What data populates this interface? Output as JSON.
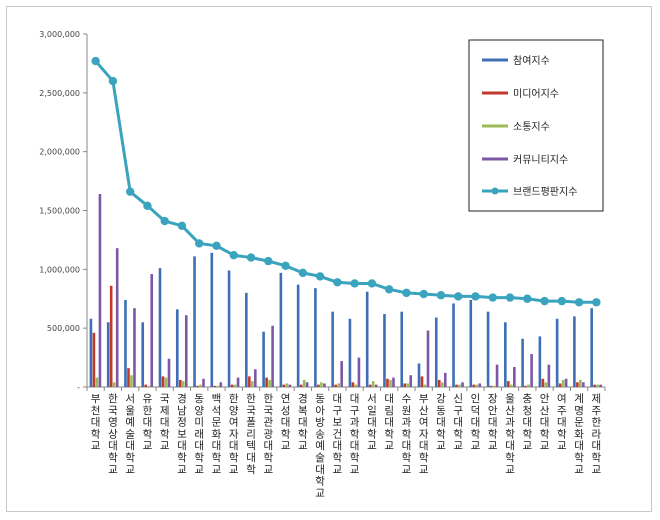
{
  "chart_data": {
    "type": "bar",
    "ylim": [
      0,
      3000000
    ],
    "yticks": [
      0,
      500000,
      1000000,
      1500000,
      2000000,
      2500000,
      3000000
    ],
    "ytick_labels": [
      "-",
      "500,000",
      "1,000,000",
      "1,500,000",
      "2,000,000",
      "2,500,000",
      "3,000,000"
    ],
    "grid": false,
    "legend_position": "top-right",
    "categories": [
      "부천대학교",
      "한국영상대학교",
      "서울예술대학교",
      "유한대학교",
      "국제대학교",
      "경남정보대학교",
      "동양미래대학교",
      "백석문화대학교",
      "한양여자대학교",
      "한국폴리텍대학",
      "한국관광대학교",
      "연성대학교",
      "경복대학교",
      "동아방송예술대학교",
      "대구보건대학교",
      "대구과학대학교",
      "서일대학교",
      "대림대학교",
      "수원과학대학교",
      "부산여자대학교",
      "강동대학교",
      "신구대학교",
      "인덕대학교",
      "장안대학교",
      "울산과학대학교",
      "충청대학교",
      "안산대학교",
      "여주대학교",
      "계명문화대학교",
      "제주한라대학교"
    ],
    "series": [
      {
        "name": "참여지수",
        "kind": "bar",
        "color": "#3c6fb5",
        "values": [
          580000,
          550000,
          740000,
          550000,
          1010000,
          660000,
          1110000,
          1140000,
          990000,
          800000,
          470000,
          970000,
          870000,
          840000,
          640000,
          580000,
          810000,
          620000,
          640000,
          200000,
          590000,
          710000,
          740000,
          640000,
          550000,
          410000,
          430000,
          580000,
          600000,
          670000
        ]
      },
      {
        "name": "미디어지수",
        "kind": "bar",
        "color": "#c0392b",
        "values": [
          460000,
          860000,
          160000,
          20000,
          90000,
          60000,
          10000,
          10000,
          20000,
          90000,
          80000,
          20000,
          20000,
          20000,
          20000,
          40000,
          20000,
          70000,
          30000,
          90000,
          60000,
          20000,
          20000,
          10000,
          50000,
          10000,
          70000,
          30000,
          40000,
          20000
        ]
      },
      {
        "name": "소통지수",
        "kind": "bar",
        "color": "#9bbb59",
        "values": [
          80000,
          40000,
          100000,
          10000,
          80000,
          50000,
          20000,
          10000,
          20000,
          50000,
          60000,
          30000,
          60000,
          40000,
          30000,
          20000,
          50000,
          60000,
          30000,
          20000,
          40000,
          20000,
          20000,
          10000,
          20000,
          20000,
          40000,
          60000,
          60000,
          20000
        ]
      },
      {
        "name": "커뮤니티지수",
        "kind": "bar",
        "color": "#7b57a5",
        "values": [
          1640000,
          1180000,
          670000,
          960000,
          240000,
          610000,
          70000,
          40000,
          80000,
          150000,
          520000,
          20000,
          40000,
          30000,
          220000,
          250000,
          20000,
          80000,
          100000,
          480000,
          120000,
          40000,
          30000,
          190000,
          170000,
          280000,
          190000,
          70000,
          40000,
          20000
        ]
      },
      {
        "name": "브랜드평판지수",
        "kind": "line",
        "color": "#3aa3bd",
        "values": [
          2770000,
          2600000,
          1660000,
          1540000,
          1410000,
          1370000,
          1220000,
          1200000,
          1120000,
          1100000,
          1070000,
          1030000,
          970000,
          940000,
          890000,
          880000,
          880000,
          830000,
          800000,
          790000,
          780000,
          770000,
          770000,
          760000,
          760000,
          750000,
          730000,
          730000,
          720000,
          720000
        ]
      }
    ]
  }
}
